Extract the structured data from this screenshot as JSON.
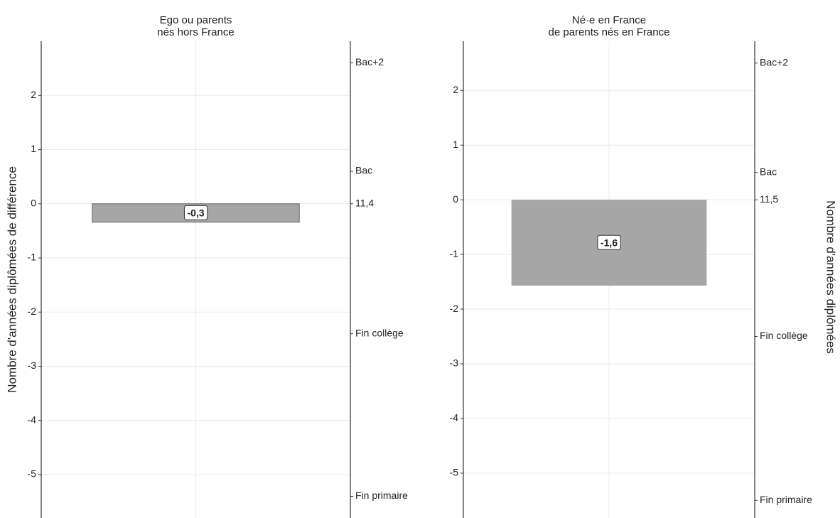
{
  "chart_data": [
    {
      "type": "bar",
      "title": "Ego ou parents\nnés hors France",
      "ylabel": "Nombre d'années diplômées de différence",
      "categories": [
        null
      ],
      "values": [
        -0.34
      ],
      "value_labels": [
        "-0,3"
      ],
      "color": "#a6a6a6",
      "ylim": [
        -5.8,
        3.0
      ],
      "yticks": [
        -5,
        -4,
        -3,
        -2,
        -1,
        0,
        1,
        2
      ],
      "y2lim": [
        5.6,
        14.4
      ],
      "y2ticks": [
        {
          "value": 6,
          "label": "Fin primaire"
        },
        {
          "value": 9,
          "label": "Fin collège"
        },
        {
          "value": 11.4,
          "label": "11,4"
        },
        {
          "value": 12,
          "label": "Bac"
        },
        {
          "value": 14,
          "label": "Bac+2"
        }
      ],
      "grid": true
    },
    {
      "type": "bar",
      "title": "Né·e en France\nde parents nés en France",
      "y2label": "Nombre d'années diplômées",
      "categories": [
        null
      ],
      "values": [
        -1.57
      ],
      "value_labels": [
        "-1,6"
      ],
      "color": "#a6a6a6",
      "ylim": [
        -5.82,
        2.9
      ],
      "yticks": [
        -5,
        -4,
        -3,
        -2,
        -1,
        0,
        1,
        2
      ],
      "y2lim": [
        5.68,
        14.4
      ],
      "y2ticks": [
        {
          "value": 6,
          "label": "Fin primaire"
        },
        {
          "value": 9,
          "label": "Fin collège"
        },
        {
          "value": 11.5,
          "label": "11,5"
        },
        {
          "value": 12,
          "label": "Bac"
        },
        {
          "value": 14,
          "label": "Bac+2"
        }
      ],
      "grid": true
    }
  ]
}
